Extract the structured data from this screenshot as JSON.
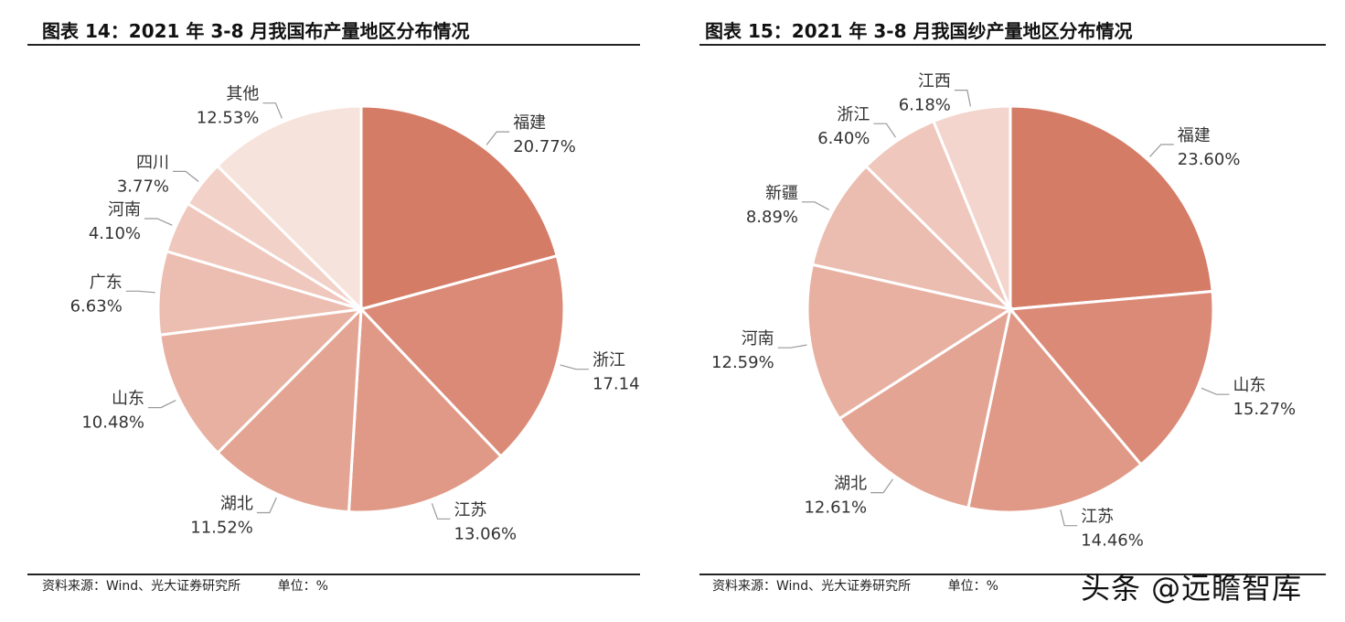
{
  "charts": [
    {
      "title": "图表 14：2021 年 3-8 月我国布产量地区分布情况",
      "source": "资料来源：Wind、光大证券研究所",
      "unit": "单位：%"
    },
    {
      "title": "图表 15：2021 年 3-8 月我国纱产量地区分布情况",
      "source": "资料来源：Wind、光大证券研究所",
      "unit": "单位：%"
    }
  ],
  "watermark": "头条 @远瞻智库",
  "chart_data": [
    {
      "type": "pie",
      "title": "图表 14：2021 年 3-8 月我国布产量地区分布情况",
      "unit": "%",
      "start": "12-o'clock",
      "direction": "clockwise",
      "slices": [
        {
          "name": "福建",
          "value": 20.77,
          "label": "20.77%",
          "color": "#d57c67"
        },
        {
          "name": "浙江",
          "value": 17.14,
          "label": "17.14%",
          "color": "#db8a77"
        },
        {
          "name": "江苏",
          "value": 13.06,
          "label": "13.06%",
          "color": "#e09987"
        },
        {
          "name": "湖北",
          "value": 11.52,
          "label": "11.52%",
          "color": "#e4a493"
        },
        {
          "name": "山东",
          "value": 10.48,
          "label": "10.48%",
          "color": "#e8b0a1"
        },
        {
          "name": "广东",
          "value": 6.63,
          "label": "6.63%",
          "color": "#ecbdb1"
        },
        {
          "name": "河南",
          "value": 4.1,
          "label": "4.10%",
          "color": "#efc7bc"
        },
        {
          "name": "四川",
          "value": 3.77,
          "label": "3.77%",
          "color": "#f2d1c8"
        },
        {
          "name": "其他",
          "value": 12.53,
          "label": "12.53%",
          "color": "#f6e3dc"
        }
      ]
    },
    {
      "type": "pie",
      "title": "图表 15：2021 年 3-8 月我国纱产量地区分布情况",
      "unit": "%",
      "start": "12-o'clock",
      "direction": "clockwise",
      "slices": [
        {
          "name": "福建",
          "value": 23.6,
          "label": "23.60%",
          "color": "#d57c67"
        },
        {
          "name": "山东",
          "value": 15.27,
          "label": "15.27%",
          "color": "#db8a77"
        },
        {
          "name": "江苏",
          "value": 14.46,
          "label": "14.46%",
          "color": "#e09987"
        },
        {
          "name": "湖北",
          "value": 12.61,
          "label": "12.61%",
          "color": "#e4a493"
        },
        {
          "name": "河南",
          "value": 12.59,
          "label": "12.59%",
          "color": "#e8b0a1"
        },
        {
          "name": "新疆",
          "value": 8.89,
          "label": "8.89%",
          "color": "#ebbcb0"
        },
        {
          "name": "浙江",
          "value": 6.4,
          "label": "6.40%",
          "color": "#efc7bc"
        },
        {
          "name": "江西",
          "value": 6.18,
          "label": "6.18%",
          "color": "#f3d5cd"
        }
      ]
    }
  ]
}
